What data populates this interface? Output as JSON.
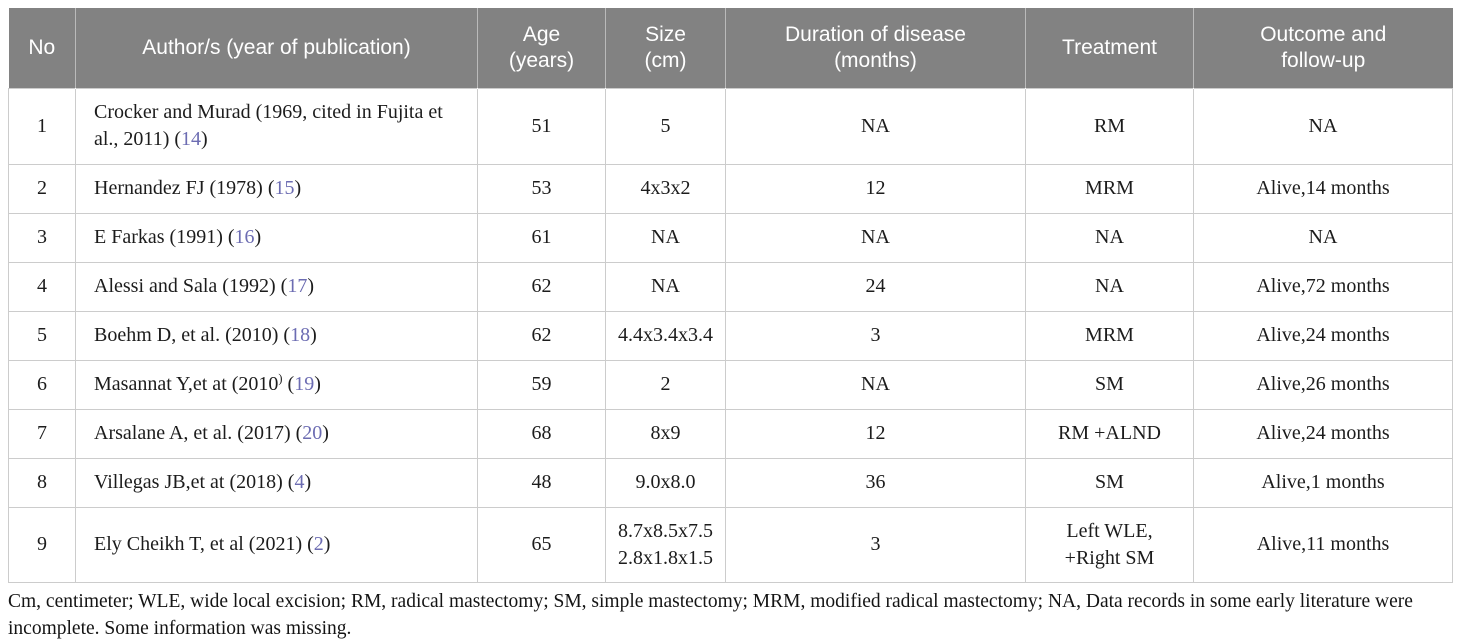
{
  "colors": {
    "header_bg": "#828282",
    "border": "#cccccc",
    "citation": "#6c6cb2"
  },
  "table": {
    "citation_wrap": {
      "open": " (",
      "close": ")"
    },
    "columns": [
      {
        "key": "no",
        "label": "No"
      },
      {
        "key": "author",
        "label": "Author/s (year of publication)"
      },
      {
        "key": "age",
        "label": "Age\n(years)"
      },
      {
        "key": "size",
        "label": "Size\n(cm)"
      },
      {
        "key": "duration",
        "label": "Duration of disease\n(months)"
      },
      {
        "key": "treatment",
        "label": "Treatment"
      },
      {
        "key": "outcome",
        "label": "Outcome and\nfollow-up"
      }
    ],
    "rows": [
      {
        "no": "1",
        "author_main": "Crocker and Murad (1969, cited in Fujita et al., 2011)",
        "author_sup": "",
        "citation": "14",
        "age": "51",
        "size": "5",
        "duration": "NA",
        "treatment": "RM",
        "outcome": "NA"
      },
      {
        "no": "2",
        "author_main": "Hernandez FJ (1978)",
        "author_sup": "",
        "citation": "15",
        "age": "53",
        "size": "4x3x2",
        "duration": "12",
        "treatment": "MRM",
        "outcome": "Alive,14 months"
      },
      {
        "no": "3",
        "author_main": "E Farkas (1991)",
        "author_sup": "",
        "citation": "16",
        "age": "61",
        "size": "NA",
        "duration": "NA",
        "treatment": "NA",
        "outcome": "NA"
      },
      {
        "no": "4",
        "author_main": "Alessi and Sala (1992)",
        "author_sup": "",
        "citation": "17",
        "age": "62",
        "size": "NA",
        "duration": "24",
        "treatment": "NA",
        "outcome": "Alive,72 months"
      },
      {
        "no": "5",
        "author_main": "Boehm D, et al. (2010)",
        "author_sup": "",
        "citation": "18",
        "age": "62",
        "size": "4.4x3.4x3.4",
        "duration": "3",
        "treatment": "MRM",
        "outcome": "Alive,24 months"
      },
      {
        "no": "6",
        "author_main": "Masannat Y,et at (2010",
        "author_sup": ")",
        "citation": "19",
        "age": "59",
        "size": "2",
        "duration": "NA",
        "treatment": "SM",
        "outcome": "Alive,26 months"
      },
      {
        "no": "7",
        "author_main": "Arsalane A, et al. (2017)",
        "author_sup": "",
        "citation": "20",
        "age": "68",
        "size": "8x9",
        "duration": "12",
        "treatment": "RM +ALND",
        "outcome": "Alive,24 months"
      },
      {
        "no": "8",
        "author_main": "Villegas JB,et at (2018)",
        "author_sup": "",
        "citation": "4",
        "age": "48",
        "size": "9.0x8.0",
        "duration": "36",
        "treatment": "SM",
        "outcome": "Alive,1 months"
      },
      {
        "no": "9",
        "author_main": "Ely Cheikh T, et al (2021)",
        "author_sup": "",
        "citation": "2",
        "age": "65",
        "size": "8.7x8.5x7.5\n2.8x1.8x1.5",
        "duration": "3",
        "treatment": "Left WLE,\n+Right SM",
        "outcome": "Alive,11 months"
      }
    ]
  },
  "footer": {
    "note": "Cm, centimeter; WLE, wide local excision; RM, radical mastectomy; SM, simple mastectomy; MRM, modified radical mastectomy; NA, Data records in some early literature were incomplete. Some information was missing."
  }
}
